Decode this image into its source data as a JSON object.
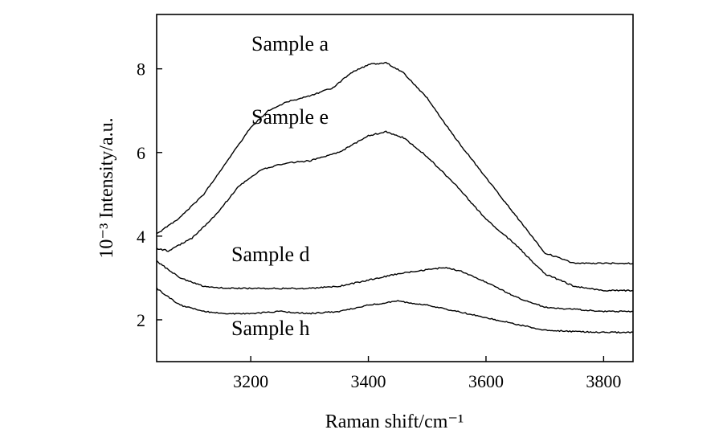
{
  "chart_data": {
    "type": "line",
    "xlabel": "Raman shift/cm⁻¹",
    "ylabel": "10⁻³ Intensity/a.u.",
    "xlim": [
      3040,
      3850
    ],
    "ylim": [
      1.0,
      9.3
    ],
    "xticks": [
      3200,
      3400,
      3600,
      3800
    ],
    "yticks": [
      2,
      4,
      6,
      8
    ],
    "grid": false,
    "legend": "none",
    "colors": {
      "line": "#000000",
      "axis": "#000000"
    },
    "series": [
      {
        "name": "Sample a",
        "x": [
          3040,
          3080,
          3120,
          3160,
          3200,
          3230,
          3260,
          3300,
          3340,
          3370,
          3400,
          3430,
          3460,
          3500,
          3550,
          3600,
          3650,
          3700,
          3750,
          3800,
          3850
        ],
        "y": [
          4.05,
          4.45,
          5.0,
          5.8,
          6.6,
          7.0,
          7.2,
          7.35,
          7.55,
          7.9,
          8.1,
          8.15,
          7.9,
          7.3,
          6.3,
          5.4,
          4.5,
          3.6,
          3.35,
          3.35,
          3.35
        ]
      },
      {
        "name": "Sample e",
        "x": [
          3040,
          3060,
          3100,
          3140,
          3180,
          3220,
          3260,
          3300,
          3350,
          3400,
          3430,
          3460,
          3500,
          3550,
          3600,
          3650,
          3700,
          3750,
          3800,
          3850
        ],
        "y": [
          3.7,
          3.65,
          3.95,
          4.5,
          5.2,
          5.6,
          5.75,
          5.8,
          6.0,
          6.4,
          6.5,
          6.35,
          5.9,
          5.2,
          4.4,
          3.8,
          3.1,
          2.8,
          2.7,
          2.7
        ]
      },
      {
        "name": "Sample d",
        "x": [
          3040,
          3080,
          3120,
          3160,
          3200,
          3250,
          3300,
          3350,
          3400,
          3450,
          3500,
          3530,
          3560,
          3600,
          3650,
          3700,
          3750,
          3800,
          3850
        ],
        "y": [
          3.4,
          3.0,
          2.8,
          2.75,
          2.75,
          2.75,
          2.75,
          2.8,
          2.95,
          3.1,
          3.2,
          3.25,
          3.15,
          2.9,
          2.55,
          2.3,
          2.25,
          2.2,
          2.2
        ]
      },
      {
        "name": "Sample h",
        "x": [
          3040,
          3080,
          3120,
          3160,
          3200,
          3250,
          3300,
          3350,
          3400,
          3450,
          3500,
          3550,
          3600,
          3650,
          3700,
          3750,
          3800,
          3850
        ],
        "y": [
          2.75,
          2.35,
          2.2,
          2.15,
          2.15,
          2.2,
          2.15,
          2.2,
          2.35,
          2.45,
          2.35,
          2.2,
          2.05,
          1.9,
          1.75,
          1.72,
          1.7,
          1.7
        ]
      }
    ]
  }
}
